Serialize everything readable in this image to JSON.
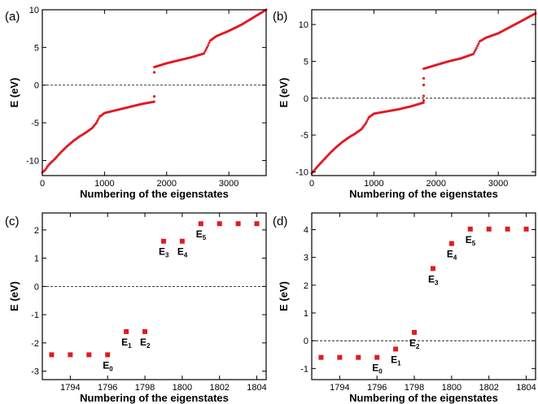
{
  "chart_data": [
    {
      "panel": "(a)",
      "type": "scatter",
      "xlabel": "Numbering of the eigenstates",
      "ylabel": "E (eV)",
      "xlim": [
        0,
        3600
      ],
      "ylim": [
        -12,
        10
      ],
      "xticks": [
        0,
        1000,
        2000,
        3000
      ],
      "yticks": [
        -10,
        -5,
        0,
        5,
        10
      ],
      "reference_line": 0,
      "series_color": "#e01b24",
      "curve": [
        [
          0,
          -11.6
        ],
        [
          50,
          -11.2
        ],
        [
          100,
          -10.6
        ],
        [
          200,
          -9.8
        ],
        [
          300,
          -8.9
        ],
        [
          400,
          -8.1
        ],
        [
          500,
          -7.4
        ],
        [
          600,
          -6.8
        ],
        [
          700,
          -6.3
        ],
        [
          800,
          -5.7
        ],
        [
          870,
          -5.0
        ],
        [
          920,
          -4.2
        ],
        [
          1000,
          -3.7
        ],
        [
          1200,
          -3.3
        ],
        [
          1400,
          -2.9
        ],
        [
          1600,
          -2.5
        ],
        [
          1798,
          -2.2
        ],
        [
          1802,
          2.4
        ],
        [
          2000,
          2.9
        ],
        [
          2200,
          3.3
        ],
        [
          2400,
          3.7
        ],
        [
          2600,
          4.2
        ],
        [
          2650,
          5.0
        ],
        [
          2700,
          5.9
        ],
        [
          2800,
          6.5
        ],
        [
          3000,
          7.2
        ],
        [
          3200,
          8.0
        ],
        [
          3400,
          9.0
        ],
        [
          3600,
          10.0
        ]
      ],
      "isolated_points": [
        [
          1800,
          -1.5
        ],
        [
          1801,
          1.7
        ]
      ]
    },
    {
      "panel": "(b)",
      "type": "scatter",
      "xlabel": "Numbering of the eigenstates",
      "ylabel": "E (eV)",
      "xlim": [
        0,
        3600
      ],
      "ylim": [
        -10.5,
        12
      ],
      "xticks": [
        0,
        1000,
        2000,
        3000
      ],
      "yticks": [
        -10,
        -5,
        0,
        5,
        10
      ],
      "reference_line": 0,
      "series_color": "#e01b24",
      "curve": [
        [
          0,
          -10.2
        ],
        [
          50,
          -9.7
        ],
        [
          100,
          -9.2
        ],
        [
          200,
          -8.3
        ],
        [
          300,
          -7.4
        ],
        [
          400,
          -6.6
        ],
        [
          500,
          -5.9
        ],
        [
          600,
          -5.3
        ],
        [
          700,
          -4.8
        ],
        [
          800,
          -4.2
        ],
        [
          870,
          -3.4
        ],
        [
          920,
          -2.6
        ],
        [
          1000,
          -2.1
        ],
        [
          1200,
          -1.8
        ],
        [
          1400,
          -1.5
        ],
        [
          1600,
          -1.1
        ],
        [
          1798,
          -0.6
        ],
        [
          1802,
          4.0
        ],
        [
          2000,
          4.5
        ],
        [
          2200,
          5.0
        ],
        [
          2400,
          5.4
        ],
        [
          2600,
          6.0
        ],
        [
          2650,
          6.8
        ],
        [
          2700,
          7.7
        ],
        [
          2800,
          8.2
        ],
        [
          3000,
          8.8
        ],
        [
          3200,
          9.7
        ],
        [
          3400,
          10.6
        ],
        [
          3600,
          11.5
        ]
      ],
      "isolated_points": [
        [
          1799,
          -0.3
        ],
        [
          1800,
          0.3
        ],
        [
          1801,
          1.8
        ],
        [
          1801,
          2.7
        ]
      ]
    },
    {
      "panel": "(c)",
      "type": "scatter",
      "xlabel": "Numbering of the eigenstates",
      "ylabel": "E (eV)",
      "xlim": [
        1792.5,
        1804.5
      ],
      "ylim": [
        -3.3,
        2.6
      ],
      "xticks": [
        1794,
        1796,
        1798,
        1800,
        1802,
        1804
      ],
      "yticks": [
        -3,
        -2,
        -1,
        0,
        1,
        2
      ],
      "reference_line": 0,
      "series_color": "#e01b24",
      "points": [
        {
          "x": 1793,
          "y": -2.42
        },
        {
          "x": 1794,
          "y": -2.42
        },
        {
          "x": 1795,
          "y": -2.42
        },
        {
          "x": 1796,
          "y": -2.42,
          "label": "E",
          "sub": "0"
        },
        {
          "x": 1797,
          "y": -1.6,
          "label": "E",
          "sub": "1"
        },
        {
          "x": 1798,
          "y": -1.6,
          "label": "E",
          "sub": "2"
        },
        {
          "x": 1799,
          "y": 1.6,
          "label": "E",
          "sub": "3"
        },
        {
          "x": 1800,
          "y": 1.6,
          "label": "E",
          "sub": "4"
        },
        {
          "x": 1801,
          "y": 2.22,
          "label": "E",
          "sub": "5"
        },
        {
          "x": 1802,
          "y": 2.22
        },
        {
          "x": 1803,
          "y": 2.22
        },
        {
          "x": 1804,
          "y": 2.22
        }
      ]
    },
    {
      "panel": "(d)",
      "type": "scatter",
      "xlabel": "Numbering of the eigenstates",
      "ylabel": "E (eV)",
      "xlim": [
        1792.5,
        1804.5
      ],
      "ylim": [
        -1.4,
        4.6
      ],
      "xticks": [
        1794,
        1796,
        1798,
        1800,
        1802,
        1804
      ],
      "yticks": [
        -1,
        0,
        1,
        2,
        3,
        4
      ],
      "reference_line": 0,
      "series_color": "#e01b24",
      "points": [
        {
          "x": 1793,
          "y": -0.6
        },
        {
          "x": 1794,
          "y": -0.6
        },
        {
          "x": 1795,
          "y": -0.6
        },
        {
          "x": 1796,
          "y": -0.6,
          "label": "E",
          "sub": "0"
        },
        {
          "x": 1797,
          "y": -0.3,
          "label": "E",
          "sub": "1"
        },
        {
          "x": 1798,
          "y": 0.3,
          "label": "E",
          "sub": "2"
        },
        {
          "x": 1799,
          "y": 2.6,
          "label": "E",
          "sub": "3"
        },
        {
          "x": 1800,
          "y": 3.5,
          "label": "E",
          "sub": "4"
        },
        {
          "x": 1801,
          "y": 4.02,
          "label": "E",
          "sub": "5"
        },
        {
          "x": 1802,
          "y": 4.02
        },
        {
          "x": 1803,
          "y": 4.02
        },
        {
          "x": 1804,
          "y": 4.02
        }
      ]
    }
  ]
}
